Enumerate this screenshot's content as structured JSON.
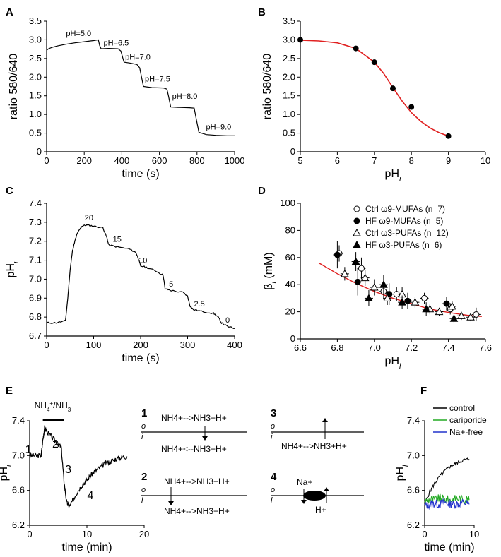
{
  "chart_data": [
    {
      "panel": "A",
      "type": "line",
      "xlabel": "time (s)",
      "ylabel": "ratio 580/640",
      "xlim": [
        0,
        1000
      ],
      "ylim": [
        0,
        3.5
      ],
      "xticks": [
        0,
        200,
        400,
        600,
        800,
        1000
      ],
      "yticks": [
        0,
        0.5,
        1.0,
        1.5,
        2.0,
        2.5,
        3.0,
        3.5
      ],
      "xtick_labels": [
        "0",
        "200",
        "400",
        "600",
        "800",
        "1000"
      ],
      "ytick_labels": [
        "0",
        "0.5",
        "1.0",
        "1.5",
        "2.0",
        "2.5",
        "3.0",
        "3.5"
      ],
      "series": [
        {
          "name": "trace",
          "x": [
            0,
            10,
            30,
            60,
            100,
            150,
            200,
            250,
            275,
            282,
            290,
            330,
            380,
            395,
            405,
            412,
            440,
            480,
            495,
            505,
            515,
            560,
            620,
            640,
            648,
            660,
            700,
            760,
            785,
            795,
            810,
            850,
            900,
            960,
            1000
          ],
          "y": [
            2.72,
            2.76,
            2.8,
            2.84,
            2.88,
            2.92,
            2.95,
            2.98,
            3.0,
            2.85,
            2.76,
            2.77,
            2.76,
            2.7,
            2.52,
            2.4,
            2.38,
            2.34,
            2.25,
            2.0,
            1.75,
            1.72,
            1.71,
            1.68,
            1.5,
            1.2,
            1.19,
            1.18,
            1.17,
            0.9,
            0.52,
            0.46,
            0.44,
            0.43,
            0.43
          ]
        }
      ],
      "annotations": [
        {
          "text": "pH=5.0",
          "x": 170,
          "y": 3.1
        },
        {
          "text": "pH=6.5",
          "x": 370,
          "y": 2.85
        },
        {
          "text": "pH=7.0",
          "x": 485,
          "y": 2.47
        },
        {
          "text": "pH=7.5",
          "x": 590,
          "y": 1.88
        },
        {
          "text": "pH=8.0",
          "x": 735,
          "y": 1.42
        },
        {
          "text": "pH=9.0",
          "x": 915,
          "y": 0.6
        }
      ]
    },
    {
      "panel": "B",
      "type": "scatter",
      "xlabel": "pH",
      "xlabel_sub": "i",
      "ylabel": "ratio 580/640",
      "xlim": [
        5,
        10
      ],
      "ylim": [
        0,
        3.5
      ],
      "xticks": [
        5,
        6,
        7,
        8,
        9,
        10
      ],
      "yticks": [
        0,
        0.5,
        1.0,
        1.5,
        2.0,
        2.5,
        3.0,
        3.5
      ],
      "xtick_labels": [
        "5",
        "6",
        "7",
        "8",
        "9",
        "10"
      ],
      "ytick_labels": [
        "0",
        "0.5",
        "1.0",
        "1.5",
        "2.0",
        "2.5",
        "3.0",
        "3.5"
      ],
      "points": {
        "x": [
          5.0,
          6.5,
          7.0,
          7.5,
          8.0,
          9.0
        ],
        "y": [
          3.0,
          2.77,
          2.4,
          1.7,
          1.2,
          0.42
        ]
      },
      "fit": {
        "x": [
          5.0,
          5.5,
          6.0,
          6.5,
          7.0,
          7.25,
          7.5,
          7.75,
          8.0,
          8.25,
          8.5,
          8.75,
          9.0
        ],
        "y": [
          2.99,
          2.97,
          2.92,
          2.77,
          2.4,
          2.1,
          1.72,
          1.36,
          1.05,
          0.82,
          0.64,
          0.51,
          0.42
        ]
      }
    },
    {
      "panel": "C",
      "type": "line",
      "xlabel": "time (s)",
      "ylabel": "pH",
      "ylabel_sub": "i",
      "xlim": [
        0,
        400
      ],
      "ylim": [
        6.7,
        7.4
      ],
      "xticks": [
        0,
        100,
        200,
        300,
        400
      ],
      "yticks": [
        6.7,
        6.8,
        6.9,
        7.0,
        7.1,
        7.2,
        7.3,
        7.4
      ],
      "xtick_labels": [
        "0",
        "100",
        "200",
        "300",
        "400"
      ],
      "ytick_labels": [
        "6.7",
        "6.8",
        "6.9",
        "7.0",
        "7.1",
        "7.2",
        "7.3",
        "7.4"
      ],
      "series": [
        {
          "name": "trace",
          "x": [
            0,
            20,
            40,
            45,
            50,
            55,
            60,
            65,
            70,
            75,
            85,
            100,
            120,
            128,
            132,
            150,
            175,
            190,
            195,
            200,
            215,
            235,
            248,
            252,
            265,
            290,
            300,
            305,
            312,
            330,
            355,
            365,
            372,
            385,
            400
          ],
          "y": [
            6.77,
            6.77,
            6.78,
            6.9,
            7.05,
            7.15,
            7.2,
            7.24,
            7.26,
            7.28,
            7.285,
            7.28,
            7.27,
            7.22,
            7.18,
            7.17,
            7.16,
            7.14,
            7.11,
            7.07,
            7.06,
            7.04,
            7.02,
            6.95,
            6.94,
            6.93,
            6.91,
            6.86,
            6.84,
            6.83,
            6.82,
            6.8,
            6.77,
            6.75,
            6.74
          ]
        }
      ],
      "annotations": [
        {
          "text": "20",
          "x": 90,
          "y": 7.3
        },
        {
          "text": "15",
          "x": 150,
          "y": 7.185
        },
        {
          "text": "10",
          "x": 205,
          "y": 7.075
        },
        {
          "text": "5",
          "x": 265,
          "y": 6.95
        },
        {
          "text": "2.5",
          "x": 325,
          "y": 6.845
        },
        {
          "text": "0",
          "x": 385,
          "y": 6.76
        }
      ]
    },
    {
      "panel": "D",
      "type": "scatter",
      "xlabel": "pH",
      "xlabel_sub": "i",
      "ylabel": "β",
      "ylabel_sub": "i",
      "ylabel_unit": "(mM)",
      "xlim": [
        6.6,
        7.6
      ],
      "ylim": [
        0,
        100
      ],
      "xticks": [
        6.6,
        6.8,
        7.0,
        7.2,
        7.4,
        7.6
      ],
      "yticks": [
        0,
        20,
        40,
        60,
        80,
        100
      ],
      "xtick_labels": [
        "6.6",
        "6.8",
        "7.0",
        "7.2",
        "7.4",
        "7.6"
      ],
      "ytick_labels": [
        "0",
        "20",
        "40",
        "60",
        "80",
        "100"
      ],
      "series": [
        {
          "name": "Ctrl ω9-MUFAs (n=7)",
          "marker": "open-circle",
          "x": [
            6.81,
            6.93,
            7.05,
            7.12,
            7.27,
            7.41,
            7.55
          ],
          "y": [
            63,
            52,
            35,
            33,
            30,
            22,
            18
          ],
          "err": [
            6,
            8,
            6,
            5,
            4,
            4,
            5
          ]
        },
        {
          "name": "HF ω9-MUFAs (n=5)",
          "marker": "filled-circle",
          "x": [
            6.8,
            6.91,
            7.08,
            7.18,
            7.39
          ],
          "y": [
            62,
            42,
            33,
            28,
            26
          ],
          "err": [
            10,
            10,
            8,
            6,
            5
          ]
        },
        {
          "name": "Ctrl ω3-PUFAs (n=12)",
          "marker": "open-triangle",
          "x": [
            6.84,
            6.95,
            7.0,
            7.07,
            7.15,
            7.22,
            7.3,
            7.35,
            7.42,
            7.47,
            7.52
          ],
          "y": [
            48,
            45,
            38,
            30,
            33,
            27,
            22,
            20,
            24,
            17,
            16
          ],
          "err": [
            5,
            6,
            6,
            5,
            5,
            4,
            4,
            3,
            4,
            3,
            3
          ]
        },
        {
          "name": "HF ω3-PUFAs (n=6)",
          "marker": "filled-triangle",
          "x": [
            6.9,
            6.97,
            7.05,
            7.15,
            7.28,
            7.43
          ],
          "y": [
            57,
            30,
            40,
            27,
            22,
            15
          ],
          "err": [
            7,
            6,
            7,
            5,
            5,
            3
          ]
        }
      ],
      "fit": {
        "x": [
          6.7,
          6.8,
          6.9,
          7.0,
          7.1,
          7.2,
          7.3,
          7.4,
          7.5,
          7.58
        ],
        "y": [
          56,
          48,
          41,
          35,
          30,
          26,
          22,
          19.5,
          17.5,
          16.5
        ]
      },
      "legend": [
        "Ctrl ω9-MUFAs (n=7)",
        "HF ω9-MUFAs (n=5)",
        "Ctrl ω3-PUFAs (n=12)",
        "HF ω3-PUFAs (n=6)"
      ]
    },
    {
      "panel": "E",
      "type": "line",
      "xlabel": "time (min)",
      "ylabel": "pH",
      "ylabel_sub": "i",
      "xlim": [
        0,
        20
      ],
      "ylim": [
        6.2,
        7.4
      ],
      "xticks": [
        0,
        10,
        20
      ],
      "yticks": [
        6.2,
        6.6,
        7.0,
        7.4
      ],
      "xtick_labels": [
        "0",
        "10",
        "20"
      ],
      "ytick_labels": [
        "6.2",
        "6.6",
        "7.0",
        "7.4"
      ],
      "series": [
        {
          "name": "trace",
          "x": [
            0,
            1,
            2,
            2.3,
            2.6,
            3,
            4,
            5,
            5.5,
            6,
            6.5,
            7,
            7.5,
            8,
            9,
            10,
            11,
            12,
            13,
            14,
            15,
            16,
            17
          ],
          "y": [
            7.0,
            7.0,
            7.0,
            7.18,
            7.32,
            7.28,
            7.2,
            7.13,
            7.1,
            6.7,
            6.45,
            6.42,
            6.48,
            6.55,
            6.65,
            6.72,
            6.8,
            6.85,
            6.9,
            6.93,
            6.96,
            6.98,
            6.99
          ]
        }
      ],
      "bar_label": "NH4+/NH3",
      "phase_labels": [
        "1",
        "2",
        "3",
        "4"
      ]
    },
    {
      "panel": "F",
      "type": "line",
      "xlabel": "time (min)",
      "ylabel": "pH",
      "ylabel_sub": "i",
      "xlim": [
        0,
        10
      ],
      "ylim": [
        6.2,
        7.4
      ],
      "xticks": [
        0,
        10
      ],
      "yticks": [
        6.2,
        6.6,
        7.0,
        7.4
      ],
      "xtick_labels": [
        "0",
        "10"
      ],
      "ytick_labels": [
        "6.2",
        "6.6",
        "7.0",
        "7.4"
      ],
      "series": [
        {
          "name": "control",
          "color": "#000000",
          "x": [
            0,
            1,
            2,
            3,
            4,
            5,
            6,
            7,
            8,
            9
          ],
          "y": [
            6.45,
            6.58,
            6.68,
            6.76,
            6.82,
            6.87,
            6.9,
            6.93,
            6.95,
            6.96
          ]
        },
        {
          "name": "cariporide",
          "color": "#22aa22",
          "x": [
            0,
            1,
            2,
            3,
            4,
            5,
            6,
            7,
            8,
            9
          ],
          "y": [
            6.47,
            6.5,
            6.49,
            6.51,
            6.5,
            6.49,
            6.5,
            6.51,
            6.5,
            6.49
          ]
        },
        {
          "name": "Na+-free",
          "color": "#2233cc",
          "x": [
            0,
            1,
            2,
            3,
            4,
            5,
            6,
            7,
            8,
            9
          ],
          "y": [
            6.42,
            6.44,
            6.45,
            6.44,
            6.46,
            6.45,
            6.44,
            6.45,
            6.46,
            6.44
          ]
        }
      ],
      "legend": [
        "control",
        "cariporide",
        "Na+-free"
      ]
    }
  ],
  "panel_labels": [
    "A",
    "B",
    "C",
    "D",
    "E",
    "F"
  ],
  "schematic": {
    "side_outer": "o",
    "side_inner": "i",
    "panels": [
      {
        "label": "1",
        "top": "NH4+-->NH3+H+",
        "bottom": "NH4+<--NH3+H+"
      },
      {
        "label": "2",
        "top": "NH4+-->NH3+H+",
        "bottom": "NH4+-->NH3+H+"
      },
      {
        "label": "3",
        "top": "",
        "bottom": "NH4+-->NH3+H+"
      },
      {
        "label": "4",
        "top": "Na+",
        "bottom": "H+"
      }
    ]
  },
  "colors": {
    "fit": "#e02020",
    "control": "#000000",
    "cariporide": "#22aa22",
    "na_free": "#2233cc"
  }
}
